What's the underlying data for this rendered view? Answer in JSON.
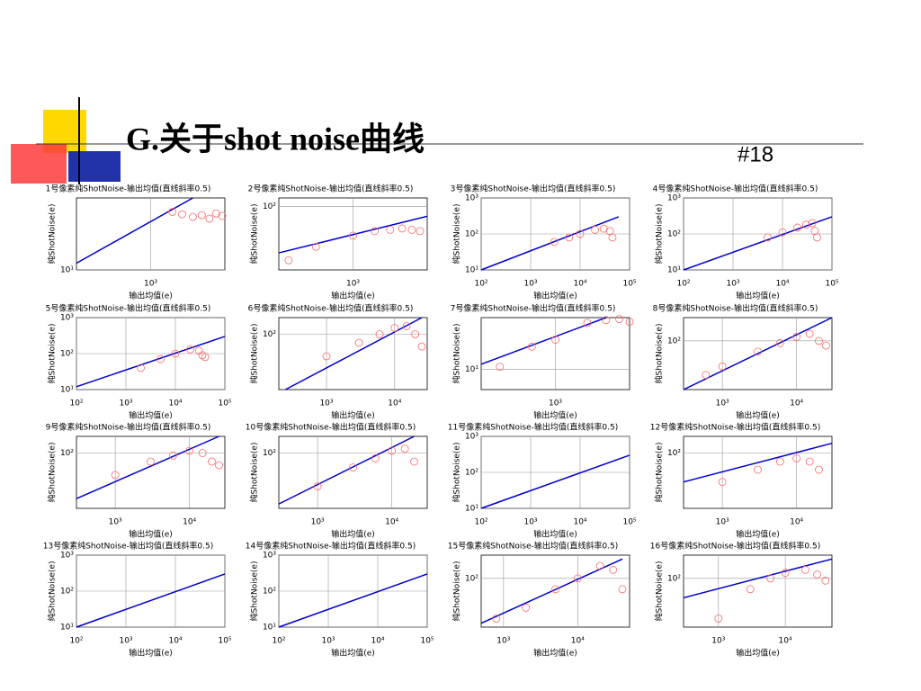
{
  "header": {
    "title": "G.关于shot noise曲线",
    "number": "#18"
  },
  "chart_data": [
    {
      "type": "scatter",
      "title": "1号像素纯ShotNoise-输出均值(直线斜率0.5)",
      "xlabel": "输出均值(e)",
      "ylabel": "纯ShotNoise(e)",
      "log_scale": true,
      "grid": true,
      "xlim": [
        250,
        4000
      ],
      "ylim": [
        10,
        70
      ],
      "xticks": [
        {
          "value": 1000,
          "label": "10³"
        }
      ],
      "yticks": [
        {
          "value": 10,
          "label": "10¹"
        }
      ],
      "series": [
        {
          "type": "line",
          "color": "#0000cc",
          "x": [
            250,
            2200
          ],
          "y": [
            12,
            70
          ]
        },
        {
          "type": "scatter",
          "color": "#ff6666",
          "x": [
            1500,
            1800,
            2200,
            2600,
            3000,
            3400,
            3800
          ],
          "y": [
            48,
            45,
            42,
            44,
            40,
            46,
            43
          ]
        }
      ]
    },
    {
      "type": "scatter",
      "title": "2号像素纯ShotNoise-输出均值(直线斜率0.5)",
      "xlabel": "输出均值(e)",
      "ylabel": "纯ShotNoise(e)",
      "log_scale": true,
      "grid": true,
      "xlim": [
        250,
        4000
      ],
      "ylim": [
        15,
        130
      ],
      "xticks": [
        {
          "value": 1000,
          "label": "10³"
        }
      ],
      "yticks": [
        {
          "value": 100,
          "label": "10²"
        }
      ],
      "series": [
        {
          "type": "line",
          "color": "#0000cc",
          "x": [
            250,
            4000
          ],
          "y": [
            25,
            75
          ]
        },
        {
          "type": "scatter",
          "color": "#ff6666",
          "x": [
            300,
            500,
            1000,
            1500,
            2000,
            2500,
            3000,
            3500
          ],
          "y": [
            20,
            30,
            42,
            48,
            50,
            52,
            50,
            48
          ]
        }
      ]
    },
    {
      "type": "scatter",
      "title": "3号像素纯ShotNoise-输出均值(直线斜率0.5)",
      "xlabel": "输出均值(e)",
      "ylabel": "纯ShotNoise(e)",
      "log_scale": true,
      "grid": true,
      "xlim": [
        100,
        100000
      ],
      "ylim": [
        10,
        1000
      ],
      "xticks": [
        {
          "value": 100,
          "label": "10²"
        },
        {
          "value": 1000,
          "label": "10³"
        },
        {
          "value": 10000,
          "label": "10⁴"
        },
        {
          "value": 100000,
          "label": "10⁵"
        }
      ],
      "yticks": [
        {
          "value": 10,
          "label": "10¹"
        },
        {
          "value": 100,
          "label": "10²"
        },
        {
          "value": 1000,
          "label": "10³"
        }
      ],
      "series": [
        {
          "type": "line",
          "color": "#0000cc",
          "x": [
            100,
            60000
          ],
          "y": [
            10,
            300
          ]
        },
        {
          "type": "scatter",
          "color": "#ff6666",
          "x": [
            3000,
            6000,
            10000,
            20000,
            30000,
            40000,
            45000
          ],
          "y": [
            60,
            80,
            100,
            130,
            140,
            120,
            80
          ]
        }
      ]
    },
    {
      "type": "scatter",
      "title": "4号像素纯ShotNoise-输出均值(直线斜率0.5)",
      "xlabel": "输出均值(e)",
      "ylabel": "纯ShotNoise(e)",
      "log_scale": true,
      "grid": true,
      "xlim": [
        100,
        100000
      ],
      "ylim": [
        10,
        1000
      ],
      "xticks": [
        {
          "value": 100,
          "label": "10²"
        },
        {
          "value": 1000,
          "label": "10³"
        },
        {
          "value": 10000,
          "label": "10⁴"
        },
        {
          "value": 100000,
          "label": "10⁵"
        }
      ],
      "yticks": [
        {
          "value": 10,
          "label": "10¹"
        },
        {
          "value": 100,
          "label": "10²"
        },
        {
          "value": 1000,
          "label": "10³"
        }
      ],
      "series": [
        {
          "type": "line",
          "color": "#0000cc",
          "x": [
            100,
            100000
          ],
          "y": [
            10,
            300
          ]
        },
        {
          "type": "scatter",
          "color": "#ff6666",
          "x": [
            5000,
            10000,
            20000,
            30000,
            40000,
            45000,
            50000
          ],
          "y": [
            80,
            110,
            150,
            180,
            200,
            120,
            80
          ]
        }
      ]
    },
    {
      "type": "scatter",
      "title": "5号像素纯ShotNoise-输出均值(直线斜率0.5)",
      "xlabel": "输出均值(e)",
      "ylabel": "纯ShotNoise(e)",
      "log_scale": true,
      "grid": true,
      "xlim": [
        100,
        100000
      ],
      "ylim": [
        10,
        1000
      ],
      "xticks": [
        {
          "value": 100,
          "label": "10²"
        },
        {
          "value": 1000,
          "label": "10³"
        },
        {
          "value": 10000,
          "label": "10⁴"
        },
        {
          "value": 100000,
          "label": "10⁵"
        }
      ],
      "yticks": [
        {
          "value": 10,
          "label": "10¹"
        },
        {
          "value": 100,
          "label": "10²"
        },
        {
          "value": 1000,
          "label": "10³"
        }
      ],
      "series": [
        {
          "type": "line",
          "color": "#0000cc",
          "x": [
            100,
            100000
          ],
          "y": [
            12,
            300
          ]
        },
        {
          "type": "scatter",
          "color": "#ff6666",
          "x": [
            2000,
            5000,
            10000,
            20000,
            30000,
            35000,
            40000
          ],
          "y": [
            40,
            70,
            100,
            130,
            120,
            90,
            80
          ]
        }
      ]
    },
    {
      "type": "scatter",
      "title": "6号像素纯ShotNoise-输出均值(直线斜率0.5)",
      "xlabel": "输出均值(e)",
      "ylabel": "纯ShotNoise(e)",
      "log_scale": true,
      "grid": true,
      "xlim": [
        200,
        30000
      ],
      "ylim": [
        10,
        200
      ],
      "xticks": [
        {
          "value": 1000,
          "label": "10³"
        },
        {
          "value": 10000,
          "label": "10⁴"
        }
      ],
      "yticks": [
        {
          "value": 100,
          "label": "10²"
        }
      ],
      "series": [
        {
          "type": "line",
          "color": "#0000cc",
          "x": [
            250,
            25000
          ],
          "y": [
            10,
            200
          ]
        },
        {
          "type": "scatter",
          "color": "#ff6666",
          "x": [
            1000,
            3000,
            6000,
            10000,
            15000,
            20000,
            25000
          ],
          "y": [
            40,
            70,
            100,
            130,
            140,
            100,
            60
          ]
        }
      ]
    },
    {
      "type": "scatter",
      "title": "7号像素纯ShotNoise-输出均值(直线斜率0.5)",
      "xlabel": "输出均值(e)",
      "ylabel": "纯ShotNoise(e)",
      "log_scale": true,
      "grid": true,
      "xlim": [
        200,
        5000
      ],
      "ylim": [
        5,
        60
      ],
      "xticks": [
        {
          "value": 1000,
          "label": "10³"
        }
      ],
      "yticks": [
        {
          "value": 10,
          "label": "10¹"
        }
      ],
      "series": [
        {
          "type": "line",
          "color": "#0000cc",
          "x": [
            200,
            3000
          ],
          "y": [
            12,
            60
          ]
        },
        {
          "type": "scatter",
          "color": "#ff6666",
          "x": [
            300,
            600,
            1000,
            2000,
            3000,
            4000,
            5000
          ],
          "y": [
            11,
            22,
            28,
            50,
            55,
            57,
            52
          ]
        }
      ]
    },
    {
      "type": "scatter",
      "title": "8号像素纯ShotNoise-输出均值(直线斜率0.5)",
      "xlabel": "输出均值(e)",
      "ylabel": "纯ShotNoise(e)",
      "log_scale": true,
      "grid": true,
      "xlim": [
        300,
        30000
      ],
      "ylim": [
        10,
        300
      ],
      "xticks": [
        {
          "value": 1000,
          "label": "10³"
        },
        {
          "value": 10000,
          "label": "10⁴"
        }
      ],
      "yticks": [
        {
          "value": 100,
          "label": "10²"
        }
      ],
      "series": [
        {
          "type": "line",
          "color": "#0000cc",
          "x": [
            300,
            30000
          ],
          "y": [
            10,
            300
          ]
        },
        {
          "type": "scatter",
          "color": "#ff6666",
          "x": [
            600,
            1000,
            3000,
            6000,
            10000,
            15000,
            20000,
            25000
          ],
          "y": [
            20,
            30,
            60,
            90,
            120,
            140,
            100,
            80
          ]
        }
      ]
    },
    {
      "type": "scatter",
      "title": "9号像素纯ShotNoise-输出均值(直线斜率0.5)",
      "xlabel": "输出均值(e)",
      "ylabel": "纯ShotNoise(e)",
      "log_scale": true,
      "grid": true,
      "xlim": [
        300,
        30000
      ],
      "ylim": [
        10,
        200
      ],
      "xticks": [
        {
          "value": 1000,
          "label": "10³"
        },
        {
          "value": 10000,
          "label": "10⁴"
        }
      ],
      "yticks": [
        {
          "value": 100,
          "label": "10²"
        }
      ],
      "series": [
        {
          "type": "line",
          "color": "#0000cc",
          "x": [
            300,
            25000
          ],
          "y": [
            15,
            200
          ]
        },
        {
          "type": "scatter",
          "color": "#ff6666",
          "x": [
            1000,
            3000,
            6000,
            10000,
            15000,
            20000,
            25000
          ],
          "y": [
            40,
            70,
            90,
            110,
            100,
            70,
            60
          ]
        }
      ]
    },
    {
      "type": "scatter",
      "title": "10号像素纯ShotNoise-输出均值(直线斜率0.5)",
      "xlabel": "输出均值(e)",
      "ylabel": "纯ShotNoise(e)",
      "log_scale": true,
      "grid": true,
      "xlim": [
        300,
        30000
      ],
      "ylim": [
        10,
        200
      ],
      "xticks": [
        {
          "value": 1000,
          "label": "10³"
        },
        {
          "value": 10000,
          "label": "10⁴"
        }
      ],
      "yticks": [
        {
          "value": 100,
          "label": "10²"
        }
      ],
      "series": [
        {
          "type": "line",
          "color": "#0000cc",
          "x": [
            300,
            20000
          ],
          "y": [
            12,
            200
          ]
        },
        {
          "type": "scatter",
          "color": "#ff6666",
          "x": [
            1000,
            3000,
            6000,
            10000,
            15000,
            20000
          ],
          "y": [
            25,
            55,
            80,
            110,
            120,
            70
          ]
        }
      ]
    },
    {
      "type": "scatter",
      "title": "11号像素纯ShotNoise-输出均值(直线斜率0.5)",
      "xlabel": "输出均值(e)",
      "ylabel": "纯ShotNoise(e)",
      "log_scale": true,
      "grid": true,
      "xlim": [
        100,
        100000
      ],
      "ylim": [
        10,
        1000
      ],
      "xticks": [
        {
          "value": 100,
          "label": "10²"
        },
        {
          "value": 1000,
          "label": "10³"
        },
        {
          "value": 10000,
          "label": "10⁴"
        },
        {
          "value": 100000,
          "label": "10⁵"
        }
      ],
      "yticks": [
        {
          "value": 10,
          "label": "10¹"
        },
        {
          "value": 100,
          "label": "10²"
        },
        {
          "value": 1000,
          "label": "10³"
        }
      ],
      "series": [
        {
          "type": "line",
          "color": "#0000cc",
          "x": [
            100,
            100000
          ],
          "y": [
            10,
            300
          ]
        }
      ]
    },
    {
      "type": "scatter",
      "title": "12号像素纯ShotNoise-输出均值(直线斜率0.5)",
      "xlabel": "输出均值(e)",
      "ylabel": "纯ShotNoise(e)",
      "log_scale": true,
      "grid": true,
      "xlim": [
        300,
        30000
      ],
      "ylim": [
        10,
        200
      ],
      "xticks": [
        {
          "value": 1000,
          "label": "10³"
        },
        {
          "value": 10000,
          "label": "10⁴"
        }
      ],
      "yticks": [
        {
          "value": 100,
          "label": "10²"
        }
      ],
      "series": [
        {
          "type": "line",
          "color": "#0000cc",
          "x": [
            300,
            30000
          ],
          "y": [
            30,
            150
          ]
        },
        {
          "type": "scatter",
          "color": "#ff6666",
          "x": [
            1000,
            3000,
            6000,
            10000,
            15000,
            20000
          ],
          "y": [
            30,
            50,
            70,
            80,
            70,
            50
          ]
        }
      ]
    },
    {
      "type": "scatter",
      "title": "13号像素纯ShotNoise-输出均值(直线斜率0.5)",
      "xlabel": "输出均值(e)",
      "ylabel": "纯ShotNoise(e)",
      "log_scale": true,
      "grid": true,
      "xlim": [
        100,
        100000
      ],
      "ylim": [
        10,
        1000
      ],
      "xticks": [
        {
          "value": 100,
          "label": "10²"
        },
        {
          "value": 1000,
          "label": "10³"
        },
        {
          "value": 10000,
          "label": "10⁴"
        },
        {
          "value": 100000,
          "label": "10⁵"
        }
      ],
      "yticks": [
        {
          "value": 10,
          "label": "10¹"
        },
        {
          "value": 100,
          "label": "10²"
        },
        {
          "value": 1000,
          "label": "10³"
        }
      ],
      "series": [
        {
          "type": "line",
          "color": "#0000cc",
          "x": [
            100,
            100000
          ],
          "y": [
            10,
            300
          ]
        }
      ]
    },
    {
      "type": "scatter",
      "title": "14号像素纯ShotNoise-输出均值(直线斜率0.5)",
      "xlabel": "输出均值(e)",
      "ylabel": "纯ShotNoise(e)",
      "log_scale": true,
      "grid": true,
      "xlim": [
        100,
        100000
      ],
      "ylim": [
        10,
        1000
      ],
      "xticks": [
        {
          "value": 100,
          "label": "10²"
        },
        {
          "value": 1000,
          "label": "10³"
        },
        {
          "value": 10000,
          "label": "10⁴"
        },
        {
          "value": 100000,
          "label": "10⁵"
        }
      ],
      "yticks": [
        {
          "value": 10,
          "label": "10¹"
        },
        {
          "value": 100,
          "label": "10²"
        },
        {
          "value": 1000,
          "label": "10³"
        }
      ],
      "series": [
        {
          "type": "line",
          "color": "#0000cc",
          "x": [
            100,
            100000
          ],
          "y": [
            10,
            300
          ]
        }
      ]
    },
    {
      "type": "scatter",
      "title": "15号像素纯ShotNoise-输出均值(直线斜率0.5)",
      "xlabel": "输出均值(e)",
      "ylabel": "纯ShotNoise(e)",
      "log_scale": true,
      "grid": true,
      "xlim": [
        500,
        50000
      ],
      "ylim": [
        10,
        300
      ],
      "xticks": [
        {
          "value": 1000,
          "label": "10³"
        },
        {
          "value": 10000,
          "label": "10⁴"
        }
      ],
      "yticks": [
        {
          "value": 100,
          "label": "10²"
        }
      ],
      "series": [
        {
          "type": "line",
          "color": "#0000cc",
          "x": [
            500,
            40000
          ],
          "y": [
            12,
            250
          ]
        },
        {
          "type": "scatter",
          "color": "#ff6666",
          "x": [
            800,
            2000,
            5000,
            10000,
            20000,
            30000,
            40000
          ],
          "y": [
            15,
            25,
            60,
            100,
            180,
            150,
            60
          ]
        }
      ]
    },
    {
      "type": "scatter",
      "title": "16号像素纯ShotNoise-输出均值(直线斜率0.5)",
      "xlabel": "输出均值(e)",
      "ylabel": "纯ShotNoise(e)",
      "log_scale": true,
      "grid": true,
      "xlim": [
        300,
        50000
      ],
      "ylim": [
        10,
        300
      ],
      "xticks": [
        {
          "value": 1000,
          "label": "10³"
        },
        {
          "value": 10000,
          "label": "10⁴"
        }
      ],
      "yticks": [
        {
          "value": 100,
          "label": "10²"
        }
      ],
      "series": [
        {
          "type": "line",
          "color": "#0000cc",
          "x": [
            300,
            50000
          ],
          "y": [
            40,
            250
          ]
        },
        {
          "type": "scatter",
          "color": "#ff6666",
          "x": [
            1000,
            3000,
            6000,
            10000,
            20000,
            30000,
            40000
          ],
          "y": [
            15,
            60,
            100,
            130,
            150,
            120,
            90
          ]
        }
      ]
    }
  ]
}
